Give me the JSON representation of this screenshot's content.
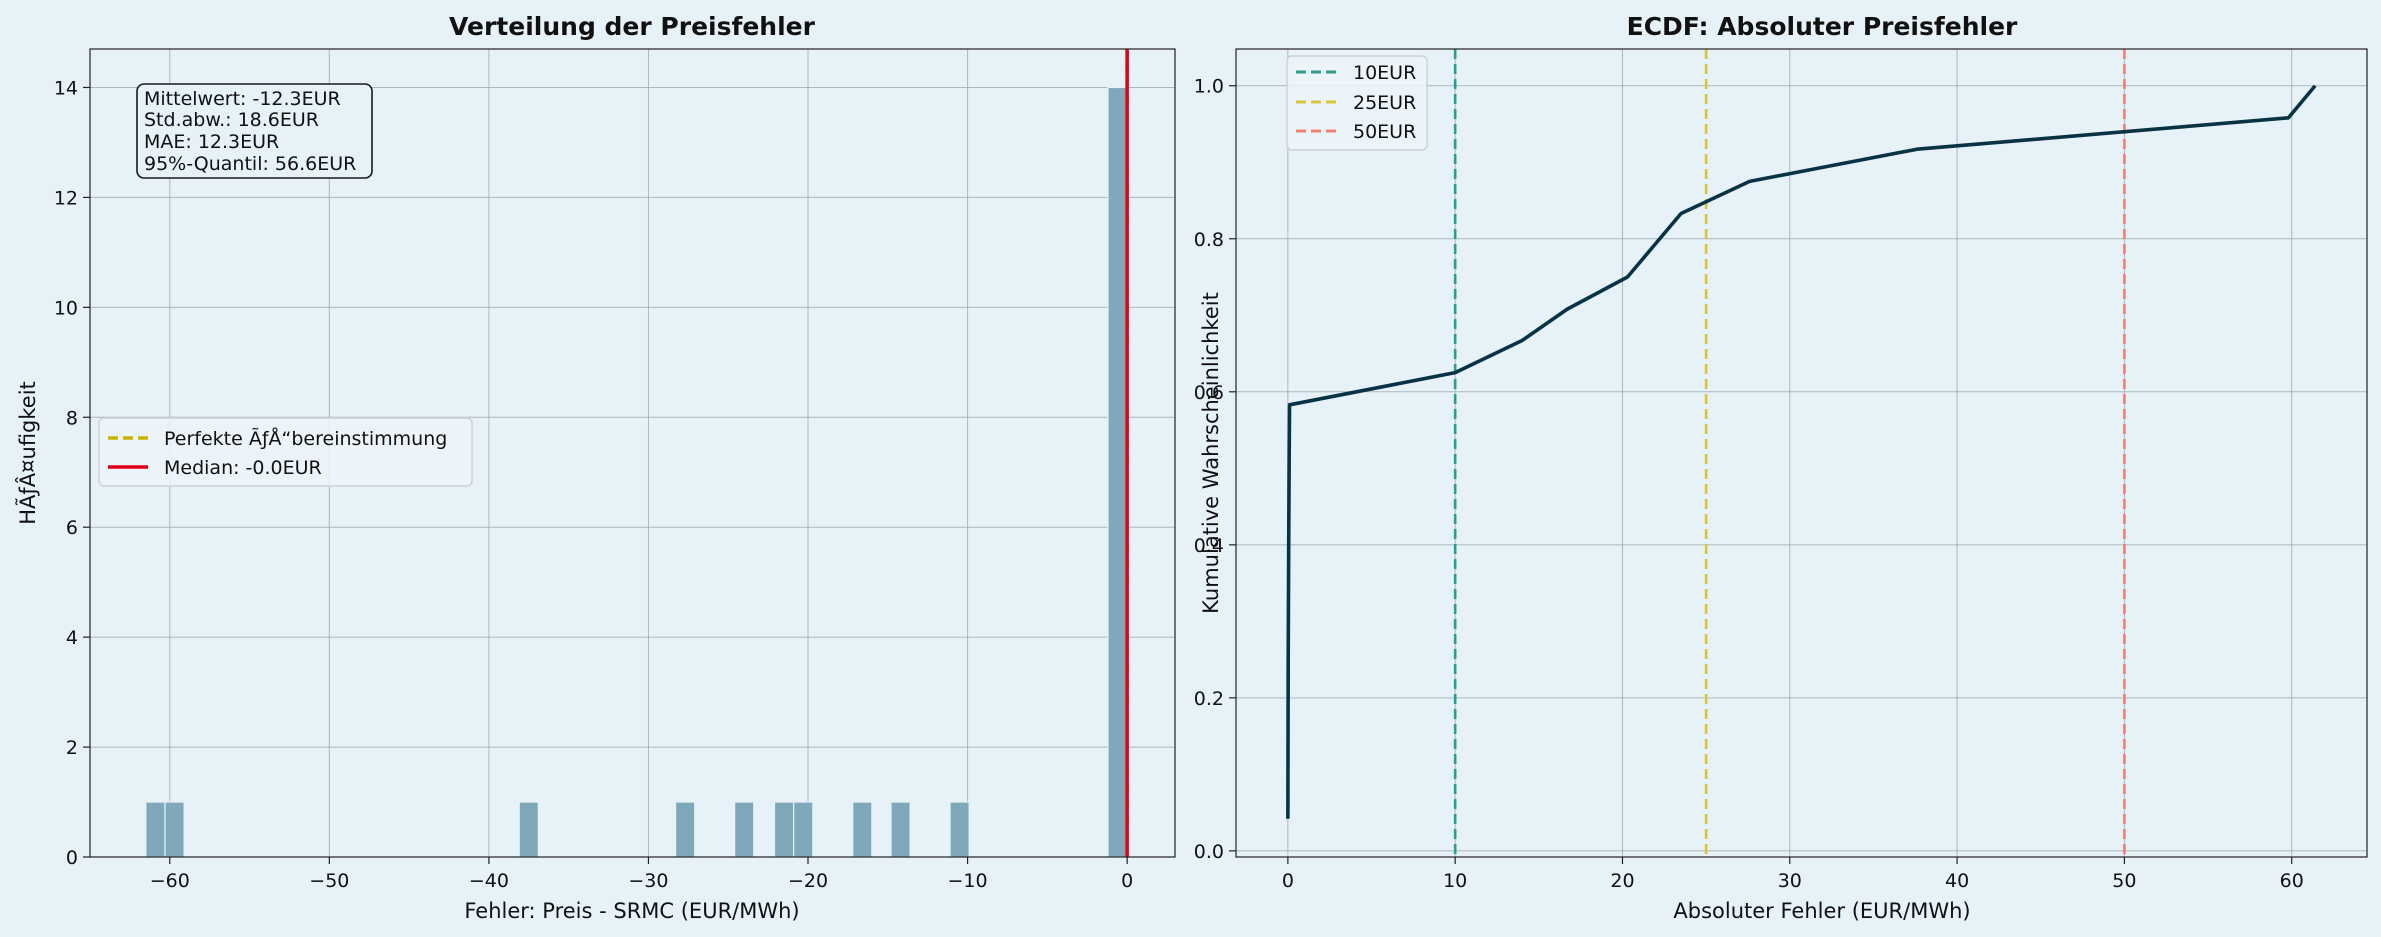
{
  "chart_data": [
    {
      "type": "bar",
      "title": "Verteilung der Preisfehler",
      "xlabel": "Fehler: Preis - SRMC (EUR/MWh)",
      "ylabel": "HÃƒÂ¤ufigkeit",
      "xlim": [
        -65.0,
        3.0
      ],
      "ylim": [
        0,
        14.7
      ],
      "xticks": [
        -60,
        -50,
        -40,
        -30,
        -20,
        -10,
        0
      ],
      "xtick_labels": [
        "−60",
        "−50",
        "−40",
        "−30",
        "−20",
        "−10",
        "0"
      ],
      "yticks": [
        0,
        2,
        4,
        6,
        8,
        10,
        12,
        14
      ],
      "ytick_labels": [
        "0",
        "2",
        "4",
        "6",
        "8",
        "10",
        "12",
        "14"
      ],
      "bar_color": "#7fa9ba",
      "bins": [
        {
          "x0": -61.5,
          "x1": -60.3,
          "count": 1
        },
        {
          "x0": -60.3,
          "x1": -59.1,
          "count": 1
        },
        {
          "x0": -38.1,
          "x1": -36.9,
          "count": 1
        },
        {
          "x0": -28.3,
          "x1": -27.1,
          "count": 1
        },
        {
          "x0": -24.6,
          "x1": -23.4,
          "count": 1
        },
        {
          "x0": -22.1,
          "x1": -20.9,
          "count": 1
        },
        {
          "x0": -20.9,
          "x1": -19.7,
          "count": 1
        },
        {
          "x0": -17.2,
          "x1": -16.0,
          "count": 1
        },
        {
          "x0": -14.8,
          "x1": -13.6,
          "count": 1
        },
        {
          "x0": -11.1,
          "x1": -9.9,
          "count": 1
        },
        {
          "x0": -1.2,
          "x1": 0.0,
          "count": 14
        }
      ],
      "vlines": [
        {
          "x": 0.0,
          "color": "#c8b400",
          "style": "dashed"
        },
        {
          "x": 0.0,
          "color": "#e0001a",
          "style": "solid"
        }
      ],
      "legend": {
        "placement": "center-left",
        "entries": [
          {
            "label": "Perfekte ÃƒÅ“bereinstimmung",
            "color": "#c8b400",
            "style": "dashed"
          },
          {
            "label": "Median: -0.0EUR",
            "color": "#e0001a",
            "style": "solid"
          }
        ]
      },
      "stats_box": {
        "placement": "top-left",
        "lines": [
          "Mittelwert: -12.3EUR",
          "Std.abw.: 18.6EUR",
          "MAE: 12.3EUR",
          "95%-Quantil: 56.6EUR"
        ]
      },
      "grid": true
    },
    {
      "type": "line",
      "title": "ECDF: Absoluter Preisfehler",
      "xlabel": "Absoluter Fehler (EUR/MWh)",
      "ylabel": "Kumulative Wahrscheinlichkeit",
      "xlim": [
        -3.1,
        64.5
      ],
      "ylim": [
        -0.008,
        1.048
      ],
      "xticks": [
        0,
        10,
        20,
        30,
        40,
        50,
        60
      ],
      "xtick_labels": [
        "0",
        "10",
        "20",
        "30",
        "40",
        "50",
        "60"
      ],
      "yticks": [
        0.0,
        0.2,
        0.4,
        0.6,
        0.8,
        1.0
      ],
      "ytick_labels": [
        "0.0",
        "0.2",
        "0.4",
        "0.6",
        "0.8",
        "1.0"
      ],
      "line_color": "#083344",
      "x": [
        0.0,
        0.02,
        0.05,
        0.08,
        0.1,
        10.0,
        14.0,
        16.7,
        20.3,
        23.5,
        27.6,
        37.6,
        59.8,
        61.4
      ],
      "y": [
        0.042,
        0.25,
        0.4,
        0.52,
        0.583,
        0.625,
        0.667,
        0.708,
        0.75,
        0.833,
        0.875,
        0.917,
        0.958,
        1.0
      ],
      "vlines": [
        {
          "x": 10,
          "color": "#2a9d8f",
          "style": "dashed"
        },
        {
          "x": 25,
          "color": "#d9c43a",
          "style": "dashed"
        },
        {
          "x": 50,
          "color": "#f08070",
          "style": "dashed"
        }
      ],
      "legend": {
        "placement": "top-left",
        "entries": [
          {
            "label": "10EUR",
            "color": "#2a9d8f",
            "style": "dashed"
          },
          {
            "label": "25EUR",
            "color": "#d9c43a",
            "style": "dashed"
          },
          {
            "label": "50EUR",
            "color": "#f08070",
            "style": "dashed"
          }
        ]
      },
      "grid": true
    }
  ]
}
